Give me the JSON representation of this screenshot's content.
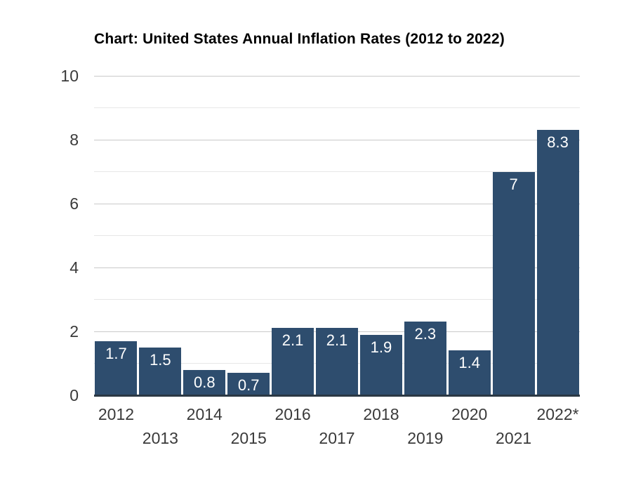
{
  "chart_data": {
    "type": "bar",
    "title": "Chart: United States Annual Inflation Rates (2012 to 2022)",
    "categories": [
      "2012",
      "2013",
      "2014",
      "2015",
      "2016",
      "2017",
      "2018",
      "2019",
      "2020",
      "2021",
      "2022*"
    ],
    "values": [
      1.7,
      1.5,
      0.8,
      0.7,
      2.1,
      2.1,
      1.9,
      2.3,
      1.4,
      7,
      8.3
    ],
    "bar_labels": [
      "1.7",
      "1.5",
      "0.8",
      "0.7",
      "2.1",
      "2.1",
      "1.9",
      "2.3",
      "1.4",
      "7",
      "8.3"
    ],
    "xlabel": "",
    "ylabel": "",
    "ylim": [
      0,
      10
    ],
    "ytick_labels": [
      "0",
      "2",
      "4",
      "6",
      "8",
      "10"
    ],
    "ytick_values": [
      0,
      2,
      4,
      6,
      8,
      10
    ],
    "grid": "horizontal lines at every integer; darker at even values, lighter at odd values",
    "legend": "none",
    "x_tick_rows": "labels alternate between two rows: even years on upper row, odd years on lower row",
    "colors": {
      "bar": "#2e4d6e",
      "bar_label_text": "#ffffff",
      "axis_line": "#2b3844",
      "major_gridline": "#c9c9c9",
      "minor_gridline": "#e7e7e7",
      "tick_text": "#3a3a3a",
      "title_text": "#000000",
      "background": "#ffffff"
    }
  }
}
